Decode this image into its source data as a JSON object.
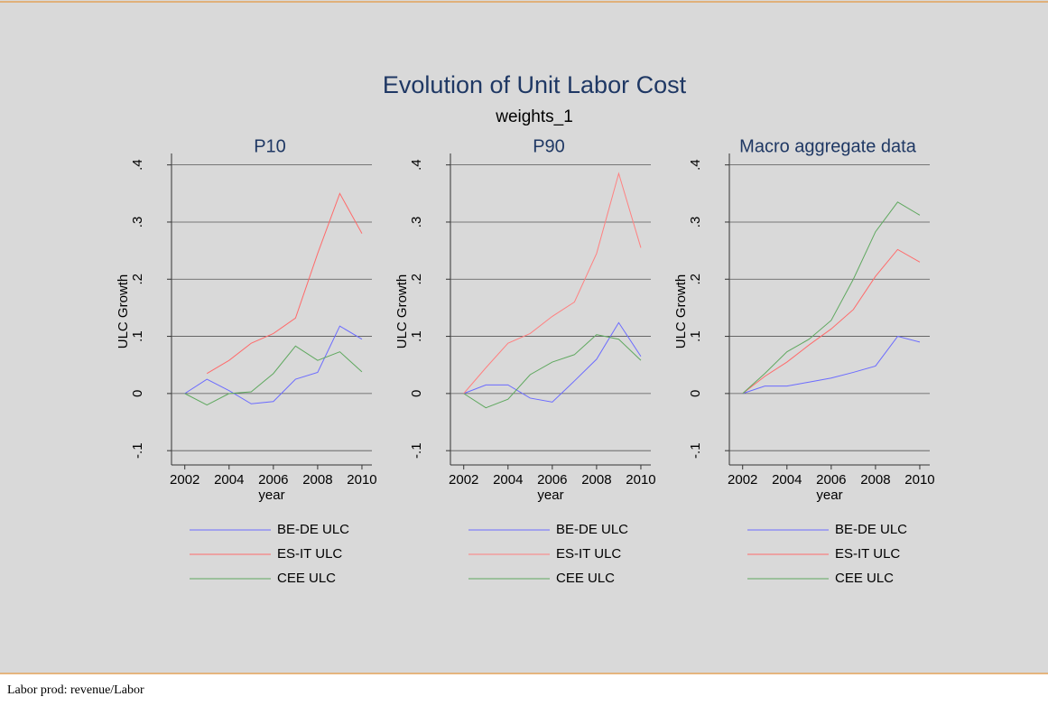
{
  "title": "Evolution of Unit Labor Cost",
  "subtitle": "weights_1",
  "footer": "Labor prod: revenue/Labor",
  "chart_data": [
    {
      "type": "line",
      "title": "P10",
      "y_label": "ULC Growth",
      "x_label": "year",
      "x": [
        2002,
        2003,
        2004,
        2005,
        2006,
        2007,
        2008,
        2009,
        2010
      ],
      "xlim": [
        2001.4,
        2010.45
      ],
      "xticks": [
        2002,
        2004,
        2006,
        2008,
        2010
      ],
      "ylim": [
        -0.125,
        0.42
      ],
      "yticks": [
        {
          "value": -0.1,
          "label": "-.1"
        },
        0,
        {
          "value": 0.1,
          "label": ".1"
        },
        {
          "value": 0.2,
          "label": ".2"
        },
        {
          "value": 0.3,
          "label": ".3"
        },
        {
          "value": 0.4,
          "label": ".4"
        }
      ],
      "grid": true,
      "series": [
        {
          "name": "BE-DE ULC",
          "color": "#6b6bff",
          "values": [
            0,
            0.025,
            0.005,
            -0.018,
            -0.014,
            0.025,
            0.037,
            0.118,
            0.095
          ]
        },
        {
          "name": "ES-IT ULC",
          "color": "#ff6b6b",
          "values": [
            null,
            0.035,
            0.058,
            0.088,
            0.105,
            0.132,
            0.245,
            0.35,
            0.28
          ]
        },
        {
          "name": "CEE ULC",
          "color": "#5fa85f",
          "values": [
            0,
            -0.02,
            0,
            0.003,
            0.035,
            0.083,
            0.058,
            0.073,
            0.038
          ]
        }
      ]
    },
    {
      "type": "line",
      "title": "P90",
      "y_label": "ULC Growth",
      "x_label": "year",
      "x": [
        2002,
        2003,
        2004,
        2005,
        2006,
        2007,
        2008,
        2009,
        2010
      ],
      "xlim": [
        2001.4,
        2010.45
      ],
      "xticks": [
        2002,
        2004,
        2006,
        2008,
        2010
      ],
      "ylim": [
        -0.125,
        0.42
      ],
      "yticks": [
        {
          "value": -0.1,
          "label": "-.1"
        },
        0,
        {
          "value": 0.1,
          "label": ".1"
        },
        {
          "value": 0.2,
          "label": ".2"
        },
        {
          "value": 0.3,
          "label": ".3"
        },
        {
          "value": 0.4,
          "label": ".4"
        }
      ],
      "grid": true,
      "series": [
        {
          "name": "BE-DE ULC",
          "color": "#6b6bff",
          "values": [
            0,
            0.015,
            0.015,
            -0.008,
            -0.015,
            0.022,
            0.06,
            0.124,
            0.065
          ]
        },
        {
          "name": "ES-IT ULC",
          "color": "#ff8080",
          "values": [
            0,
            0.045,
            0.088,
            0.105,
            0.135,
            0.16,
            0.245,
            0.385,
            0.255
          ]
        },
        {
          "name": "CEE ULC",
          "color": "#5fa85f",
          "values": [
            0,
            -0.025,
            -0.01,
            0.033,
            0.055,
            0.068,
            0.103,
            0.095,
            0.058
          ]
        }
      ]
    },
    {
      "type": "line",
      "title": "Macro aggregate data",
      "y_label": "ULC Growth",
      "x_label": "year",
      "x": [
        2002,
        2003,
        2004,
        2005,
        2006,
        2007,
        2008,
        2009,
        2010
      ],
      "xlim": [
        2001.4,
        2010.45
      ],
      "xticks": [
        2002,
        2004,
        2006,
        2008,
        2010
      ],
      "ylim": [
        -0.125,
        0.42
      ],
      "yticks": [
        {
          "value": -0.1,
          "label": "-.1"
        },
        0,
        {
          "value": 0.1,
          "label": ".1"
        },
        {
          "value": 0.2,
          "label": ".2"
        },
        {
          "value": 0.3,
          "label": ".3"
        },
        {
          "value": 0.4,
          "label": ".4"
        }
      ],
      "grid": true,
      "series": [
        {
          "name": "BE-DE ULC",
          "color": "#6b6bff",
          "values": [
            0,
            0.013,
            0.013,
            0.02,
            0.027,
            0.037,
            0.048,
            0.1,
            0.09
          ]
        },
        {
          "name": "ES-IT ULC",
          "color": "#ff6b6b",
          "values": [
            0,
            0.03,
            0.055,
            0.085,
            0.113,
            0.147,
            0.205,
            0.252,
            0.23
          ]
        },
        {
          "name": "CEE ULC",
          "color": "#5fa85f",
          "values": [
            0,
            0.035,
            0.073,
            0.095,
            0.128,
            0.2,
            0.283,
            0.335,
            0.312
          ]
        }
      ]
    }
  ]
}
